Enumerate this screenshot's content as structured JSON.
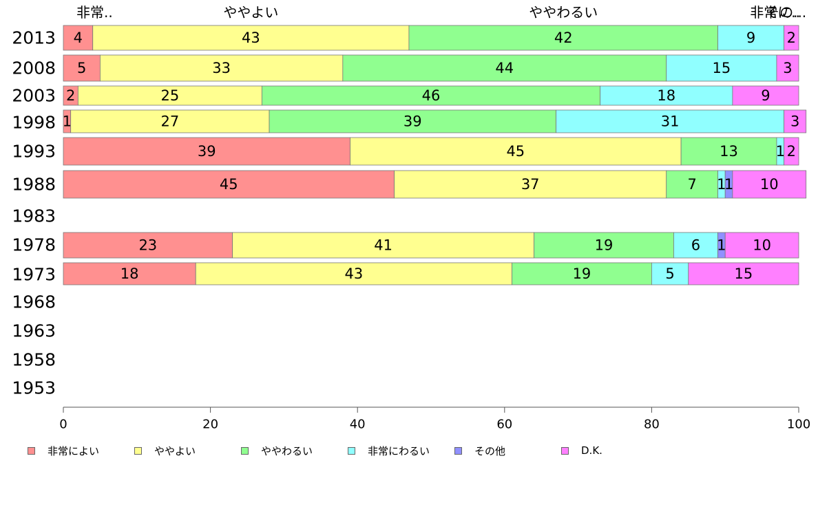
{
  "chart_data": {
    "type": "bar",
    "orientation": "horizontal",
    "stacked": true,
    "categories": [
      "2013",
      "2008",
      "2003",
      "1998",
      "1993",
      "1988",
      "1983",
      "1978",
      "1973",
      "1968",
      "1963",
      "1958",
      "1953"
    ],
    "series": [
      {
        "name": "非常によい",
        "color": "#ff9090",
        "values": [
          4,
          5,
          2,
          1,
          39,
          45,
          null,
          23,
          18,
          null,
          null,
          null,
          null
        ]
      },
      {
        "name": "ややよい",
        "color": "#ffff90",
        "values": [
          43,
          33,
          25,
          27,
          45,
          37,
          null,
          41,
          43,
          null,
          null,
          null,
          null
        ]
      },
      {
        "name": "ややわるい",
        "color": "#90ff90",
        "values": [
          42,
          44,
          46,
          39,
          13,
          7,
          null,
          19,
          19,
          null,
          null,
          null,
          null
        ]
      },
      {
        "name": "非常にわるい",
        "color": "#90ffff",
        "values": [
          9,
          15,
          18,
          31,
          1,
          1,
          null,
          6,
          5,
          null,
          null,
          null,
          null
        ]
      },
      {
        "name": "その他",
        "color": "#9090ff",
        "values": [
          0,
          0,
          0,
          0,
          0,
          1,
          null,
          1,
          0,
          null,
          null,
          null,
          null
        ]
      },
      {
        "name": "D.K.",
        "color": "#ff80ff",
        "values": [
          2,
          3,
          9,
          3,
          2,
          10,
          null,
          10,
          15,
          null,
          null,
          null,
          null
        ]
      }
    ],
    "data_labels": [
      [
        "4",
        "43",
        "42",
        "9",
        "",
        "2"
      ],
      [
        "5",
        "33",
        "44",
        "15",
        "",
        "3"
      ],
      [
        "2",
        "25",
        "46",
        "18",
        "",
        "9"
      ],
      [
        "1",
        "27",
        "39",
        "31",
        "",
        "3"
      ],
      [
        "39",
        "45",
        "13",
        "1",
        "",
        "2"
      ],
      [
        "45",
        "37",
        "7",
        "1",
        "1",
        "10"
      ],
      [
        "",
        "",
        "",
        "",
        "",
        ""
      ],
      [
        "23",
        "41",
        "19",
        "6",
        "1",
        "10"
      ],
      [
        "18",
        "43",
        "19",
        "5",
        "",
        "15"
      ]
    ],
    "top_labels": [
      "非常..",
      "ややよい",
      "ややわるい",
      "非常に..",
      "その..."
    ],
    "xlim": [
      0,
      100
    ],
    "xticks": [
      "0",
      "20",
      "40",
      "60",
      "80",
      "100"
    ],
    "legend_position": "bottom",
    "grid": false
  }
}
